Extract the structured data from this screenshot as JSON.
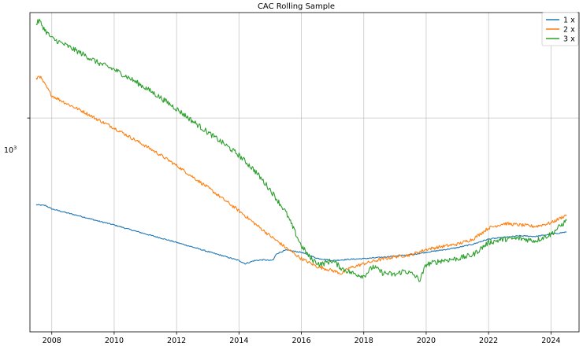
{
  "chart_data": {
    "type": "line",
    "title": "CAC Rolling Sample",
    "xlabel": "",
    "ylabel": "",
    "yscale": "log",
    "xlim": [
      2007.3,
      2024.9
    ],
    "ylim": [
      207,
      2175
    ],
    "grid": true,
    "legend_position": "top-right",
    "x_ticks": [
      2008,
      2010,
      2012,
      2014,
      2016,
      2018,
      2020,
      2022,
      2024
    ],
    "x_tick_labels": [
      "2008",
      "2010",
      "2012",
      "2014",
      "2016",
      "2018",
      "2020",
      "2022",
      "2024"
    ],
    "y_ticks": [
      1000
    ],
    "y_tick_base": "10",
    "y_tick_exp": "3",
    "series": [
      {
        "name": "1 x",
        "color": "#1f77b4",
        "x": [
          2007.5,
          2007.8,
          2008.0,
          2008.5,
          2009.0,
          2009.5,
          2010.0,
          2010.5,
          2011.0,
          2011.5,
          2012.0,
          2012.5,
          2013.0,
          2013.5,
          2014.0,
          2014.2,
          2014.5,
          2014.8,
          2015.0,
          2015.1,
          2015.2,
          2015.5,
          2016.0,
          2016.5,
          2017.0,
          2017.5,
          2018.0,
          2018.5,
          2019.0,
          2019.5,
          2020.0,
          2020.5,
          2021.0,
          2021.5,
          2022.0,
          2022.5,
          2023.0,
          2023.5,
          2024.0,
          2024.5
        ],
        "values": [
          528,
          525,
          512,
          497,
          483,
          468,
          455,
          440,
          426,
          413,
          400,
          387,
          374,
          362,
          350,
          342,
          350,
          352,
          350,
          352,
          368,
          378,
          372,
          356,
          350,
          353,
          355,
          358,
          362,
          365,
          372,
          378,
          385,
          395,
          410,
          415,
          420,
          418,
          425,
          432
        ]
      },
      {
        "name": "2 x",
        "color": "#ff7f0e",
        "x": [
          2007.5,
          2007.6,
          2007.8,
          2008.0,
          2008.5,
          2009.0,
          2009.5,
          2010.0,
          2010.5,
          2011.0,
          2011.5,
          2012.0,
          2012.5,
          2013.0,
          2013.5,
          2014.0,
          2014.5,
          2015.0,
          2015.5,
          2016.0,
          2016.5,
          2017.0,
          2017.3,
          2017.5,
          2018.0,
          2018.5,
          2019.0,
          2019.5,
          2020.0,
          2020.5,
          2021.0,
          2021.5,
          2022.0,
          2022.5,
          2023.0,
          2023.5,
          2024.0,
          2024.5
        ],
        "values": [
          1330,
          1370,
          1270,
          1180,
          1110,
          1050,
          985,
          930,
          870,
          815,
          760,
          705,
          650,
          600,
          550,
          505,
          460,
          420,
          385,
          355,
          335,
          325,
          318,
          330,
          342,
          352,
          360,
          365,
          380,
          388,
          395,
          410,
          445,
          460,
          455,
          450,
          462,
          490
        ]
      },
      {
        "name": "3 x",
        "color": "#2ca02c",
        "x": [
          2007.5,
          2007.6,
          2007.8,
          2008.0,
          2008.5,
          2009.0,
          2009.5,
          2010.0,
          2010.5,
          2011.0,
          2011.5,
          2012.0,
          2012.5,
          2013.0,
          2013.5,
          2014.0,
          2014.5,
          2015.0,
          2015.5,
          2016.0,
          2016.3,
          2016.6,
          2017.0,
          2017.3,
          2017.6,
          2018.0,
          2018.3,
          2018.6,
          2019.0,
          2019.3,
          2019.6,
          2019.8,
          2020.0,
          2020.5,
          2021.0,
          2021.5,
          2022.0,
          2022.5,
          2023.0,
          2023.5,
          2024.0,
          2024.5
        ],
        "values": [
          2000,
          2050,
          1900,
          1800,
          1700,
          1600,
          1500,
          1430,
          1340,
          1250,
          1160,
          1070,
          980,
          900,
          830,
          760,
          680,
          590,
          500,
          390,
          355,
          340,
          350,
          330,
          320,
          312,
          335,
          320,
          315,
          325,
          315,
          303,
          340,
          350,
          355,
          365,
          400,
          410,
          412,
          405,
          425,
          470
        ]
      }
    ]
  }
}
